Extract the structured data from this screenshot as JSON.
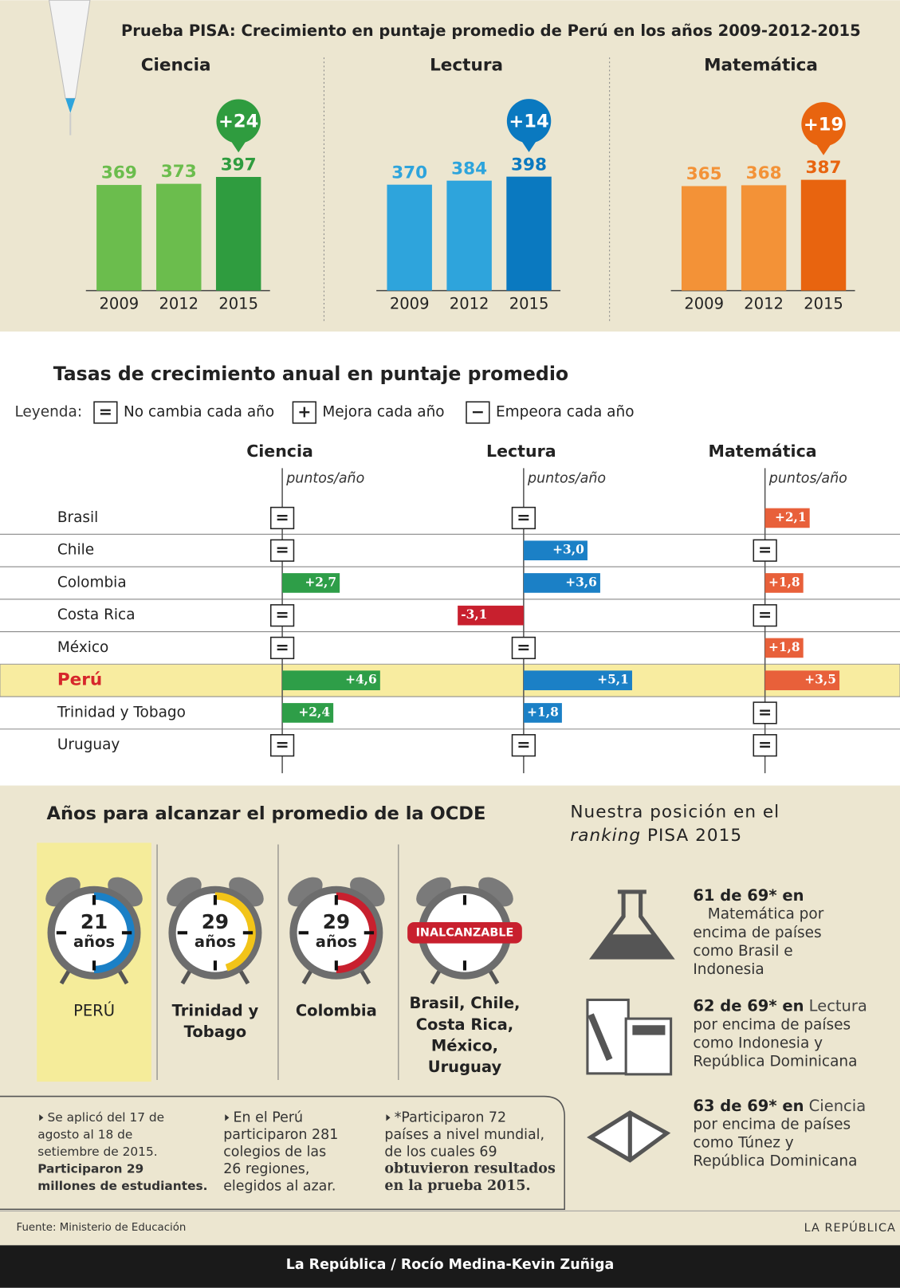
{
  "title": "Prueba PISA: Crecimiento en puntaje promedio de Perú en los años 2009-2012-2015",
  "chart_data": [
    {
      "type": "bar",
      "title": "Ciencia",
      "categories": [
        "2009",
        "2012",
        "2015"
      ],
      "values": [
        369,
        373,
        397
      ],
      "colors": [
        "#6bbd4d",
        "#6bbd4d",
        "#2f9c3f"
      ],
      "badge": "+24"
    },
    {
      "type": "bar",
      "title": "Lectura",
      "categories": [
        "2009",
        "2012",
        "2015"
      ],
      "values": [
        370,
        384,
        398
      ],
      "colors": [
        "#2ea4dc",
        "#2ea4dc",
        "#0a79c0"
      ],
      "badge": "+14"
    },
    {
      "type": "bar",
      "title": "Matemática",
      "categories": [
        "2009",
        "2012",
        "2015"
      ],
      "values": [
        365,
        368,
        387
      ],
      "colors": [
        "#f39237",
        "#f39237",
        "#e8640f"
      ],
      "badge": "+19"
    },
    {
      "type": "diverging-bar",
      "title": "Tasas de crecimiento anual en puntaje promedio",
      "legend": {
        "label": "Leyenda:",
        "items": [
          {
            "symbol": "=",
            "text": "No cambia cada año"
          },
          {
            "symbol": "+",
            "text": "Mejora cada año"
          },
          {
            "symbol": "−",
            "text": "Empeora cada año"
          }
        ]
      },
      "categories": [
        "Brasil",
        "Chile",
        "Colombia",
        "Costa Rica",
        "México",
        "Perú",
        "Trinidad y Tobago",
        "Uruguay"
      ],
      "highlight": "Perú",
      "series": [
        {
          "name": "Ciencia",
          "unit": "puntos/año",
          "color": "#2e9e48",
          "negative_color": "#c8202e",
          "values": [
            null,
            null,
            2.7,
            null,
            null,
            4.6,
            2.4,
            null
          ],
          "value_labels": [
            "=",
            "=",
            "+2,7",
            "=",
            "=",
            "+4,6",
            "+2,4",
            "="
          ]
        },
        {
          "name": "Lectura",
          "unit": "puntos/año",
          "color": "#1b80c6",
          "negative_color": "#c8202e",
          "values": [
            null,
            3.0,
            3.6,
            -3.1,
            null,
            5.1,
            1.8,
            null
          ],
          "value_labels": [
            "=",
            "+3,0",
            "+3,6",
            "-3,1",
            "=",
            "+5,1",
            "+1,8",
            "="
          ]
        },
        {
          "name": "Matemática",
          "unit": "puntos/año",
          "color": "#e8603a",
          "negative_color": "#c8202e",
          "values": [
            2.1,
            null,
            1.8,
            null,
            1.8,
            3.5,
            null,
            null
          ],
          "value_labels": [
            "+2,1",
            "=",
            "+1,8",
            "=",
            "+1,8",
            "+3,5",
            "=",
            "="
          ]
        }
      ]
    }
  ],
  "ocde": {
    "title": "Años para alcanzar el promedio de la OCDE",
    "clocks": [
      {
        "years": 21,
        "unit": "años",
        "color": "#1b80c6",
        "label_lines": [
          "PERÚ"
        ]
      },
      {
        "years": 29,
        "unit": "años",
        "color": "#f2c418",
        "label_lines": [
          "Trinidad y",
          "Tobago"
        ]
      },
      {
        "years": 29,
        "unit": "años",
        "color": "#c8202e",
        "label_lines": [
          "Colombia"
        ]
      },
      {
        "status": "INALCANZABLE",
        "label_lines": [
          "Brasil, Chile,",
          "Costa Rica,",
          "México,",
          "Uruguay"
        ]
      }
    ]
  },
  "ranking": {
    "title_line": "Nuestra posición en el",
    "title_italic": "ranking",
    "title_rest": "PISA 2015",
    "items": [
      {
        "rank": "61 de 69* en",
        "lines": [
          "Matemática por",
          "encima de países",
          "como Brasil e",
          "Indonesia"
        ]
      },
      {
        "rank": "62 de 69* en",
        "rank_suffix": "Lectura",
        "lines": [
          "por encima de países",
          "como Indonesia y",
          "República Dominicana"
        ]
      },
      {
        "rank": "63 de 69* en",
        "rank_suffix": "Ciencia",
        "lines": [
          "por encima de países",
          "como Túnez y",
          "República Dominicana"
        ]
      }
    ]
  },
  "notes": [
    {
      "lines": [
        "Se aplicó del 17 de",
        "agosto al 18 de",
        "setiembre de 2015."
      ],
      "bold_lines": [
        "Participaron 29",
        "millones de estudiantes."
      ]
    },
    {
      "lines": [
        "En el Perú",
        "participaron 281",
        "colegios de las",
        "26 regiones,",
        "elegidos al azar."
      ]
    },
    {
      "lines": [
        "*Participaron 72",
        "países a nivel mundial,",
        "de los cuales 69"
      ],
      "bold_lines": [
        "obtuvieron resultados",
        "en la prueba 2015."
      ]
    }
  ],
  "source": "Fuente: Ministerio de Educación",
  "brand": "LA REPÚBLICA",
  "credit": "La República / Rocío Medina-Kevin Zuñiga"
}
